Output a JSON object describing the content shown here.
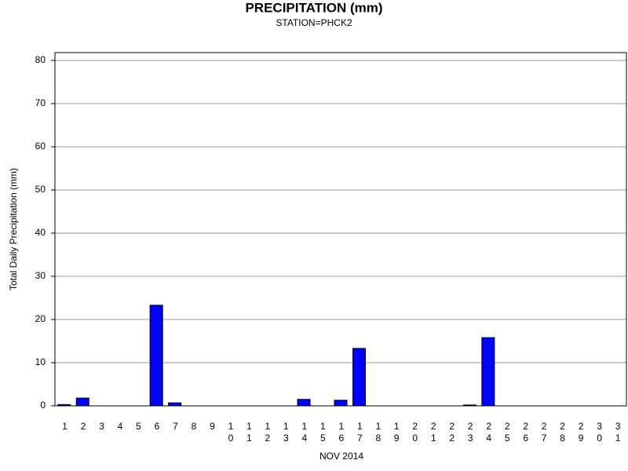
{
  "chart_data": {
    "type": "bar",
    "title": "PRECIPITATION (mm)",
    "subtitle": "STATION=PHCK2",
    "x_label": "NOV 2014",
    "y_label": "Total Daily Precipitation (mm)",
    "categories": [
      "1",
      "2",
      "3",
      "4",
      "5",
      "6",
      "7",
      "8",
      "9",
      "10",
      "11",
      "12",
      "13",
      "14",
      "15",
      "16",
      "17",
      "18",
      "19",
      "20",
      "21",
      "22",
      "23",
      "24",
      "25",
      "26",
      "27",
      "28",
      "29",
      "30",
      "31"
    ],
    "values": [
      0.3,
      1.8,
      0,
      0,
      0,
      23.3,
      0.7,
      0,
      0,
      0,
      0,
      0,
      0,
      1.5,
      0,
      1.3,
      13.3,
      0,
      0,
      0,
      0,
      0,
      0.2,
      15.8,
      0,
      0,
      0,
      0,
      0,
      0,
      0
    ],
    "color": "#0000ff",
    "ylim": [
      0,
      80
    ],
    "yticks": [
      0,
      10,
      20,
      30,
      40,
      50,
      60,
      70,
      80
    ],
    "grid": true
  }
}
